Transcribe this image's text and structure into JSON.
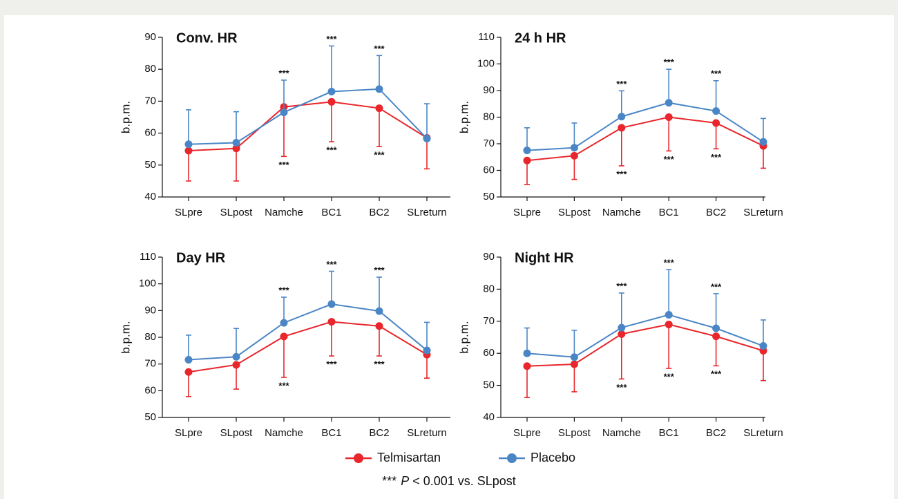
{
  "chart_data": [
    {
      "type": "line",
      "title": "Conv. HR",
      "y_label": "b.p.m.",
      "categories": [
        "SLpre",
        "SLpost",
        "Namche",
        "BC1",
        "BC2",
        "SLreturn"
      ],
      "ylim": [
        40,
        90
      ],
      "yticks": [
        40,
        50,
        60,
        70,
        80,
        90
      ],
      "series": [
        {
          "name": "Telmisartan",
          "color": "#e8262b",
          "error_bar": "lower",
          "values": [
            54.5,
            55.2,
            68.2,
            69.8,
            67.8,
            58.5
          ],
          "errors": [
            9.5,
            10.2,
            15.5,
            12.5,
            12,
            9.7
          ],
          "significance": [
            null,
            null,
            "***",
            "***",
            "***",
            null
          ]
        },
        {
          "name": "Placebo",
          "color": "#4a86c5",
          "error_bar": "upper",
          "values": [
            56.5,
            57,
            66.5,
            73,
            73.8,
            58.3
          ],
          "errors": [
            10.8,
            9.7,
            10.1,
            14.3,
            10.5,
            10.9
          ],
          "significance": [
            null,
            null,
            "***",
            "***",
            "***",
            null
          ]
        }
      ]
    },
    {
      "type": "line",
      "title": "24 h HR",
      "y_label": "b.p.m.",
      "categories": [
        "SLpre",
        "SLpost",
        "Namche",
        "BC1",
        "BC2",
        "SLreturn"
      ],
      "ylim": [
        50,
        110
      ],
      "yticks": [
        50,
        60,
        70,
        80,
        90,
        100,
        110
      ],
      "series": [
        {
          "name": "Telmisartan",
          "color": "#e8262b",
          "error_bar": "lower",
          "values": [
            63.7,
            65.5,
            76,
            80,
            77.8,
            69.2
          ],
          "errors": [
            9,
            8.9,
            14.3,
            12.7,
            9.7,
            8.4
          ],
          "significance": [
            null,
            null,
            "***",
            "***",
            "***",
            null
          ]
        },
        {
          "name": "Placebo",
          "color": "#4a86c5",
          "error_bar": "upper",
          "values": [
            67.5,
            68.5,
            80.2,
            85.4,
            82.3,
            70.7
          ],
          "errors": [
            8.5,
            9.3,
            9.7,
            12.6,
            11.4,
            8.8
          ],
          "significance": [
            null,
            null,
            "***",
            "***",
            "***",
            null
          ]
        }
      ]
    },
    {
      "type": "line",
      "title": "Day HR",
      "y_label": "b.p.m.",
      "categories": [
        "SLpre",
        "SLpost",
        "Namche",
        "BC1",
        "BC2",
        "SLreturn"
      ],
      "ylim": [
        50,
        110
      ],
      "yticks": [
        50,
        60,
        70,
        80,
        90,
        100,
        110
      ],
      "series": [
        {
          "name": "Telmisartan",
          "color": "#e8262b",
          "error_bar": "lower",
          "values": [
            67,
            69.7,
            80.3,
            85.8,
            84.2,
            73.5
          ],
          "errors": [
            9.2,
            9.1,
            15.3,
            12.8,
            11.2,
            8.8
          ],
          "significance": [
            null,
            null,
            "***",
            "***",
            "***",
            null
          ]
        },
        {
          "name": "Placebo",
          "color": "#4a86c5",
          "error_bar": "upper",
          "values": [
            71.6,
            72.7,
            85.4,
            92.4,
            89.8,
            75.1
          ],
          "errors": [
            9.2,
            10.6,
            9.6,
            12.3,
            12.7,
            10.5
          ],
          "significance": [
            null,
            null,
            "***",
            "***",
            "***",
            null
          ]
        }
      ]
    },
    {
      "type": "line",
      "title": "Night HR",
      "y_label": "b.p.m.",
      "categories": [
        "SLpre",
        "SLpost",
        "Namche",
        "BC1",
        "BC2",
        "SLreturn"
      ],
      "ylim": [
        40,
        90
      ],
      "yticks": [
        40,
        50,
        60,
        70,
        80,
        90
      ],
      "series": [
        {
          "name": "Telmisartan",
          "color": "#e8262b",
          "error_bar": "lower",
          "values": [
            56,
            56.6,
            66,
            69,
            65.3,
            60.8
          ],
          "errors": [
            9.8,
            8.6,
            14,
            13.7,
            9.2,
            9.3
          ],
          "significance": [
            null,
            null,
            "***",
            "***",
            "***",
            null
          ]
        },
        {
          "name": "Placebo",
          "color": "#4a86c5",
          "error_bar": "upper",
          "values": [
            60,
            58.8,
            68,
            72,
            67.8,
            62.3
          ],
          "errors": [
            7.9,
            8.4,
            10.8,
            14.1,
            10.8,
            8.1
          ],
          "significance": [
            null,
            null,
            "***",
            "***",
            "***",
            null
          ]
        }
      ]
    }
  ],
  "footnote": {
    "marker": "***",
    "p": "P",
    "text": "< 0.001 vs. SLpost"
  }
}
